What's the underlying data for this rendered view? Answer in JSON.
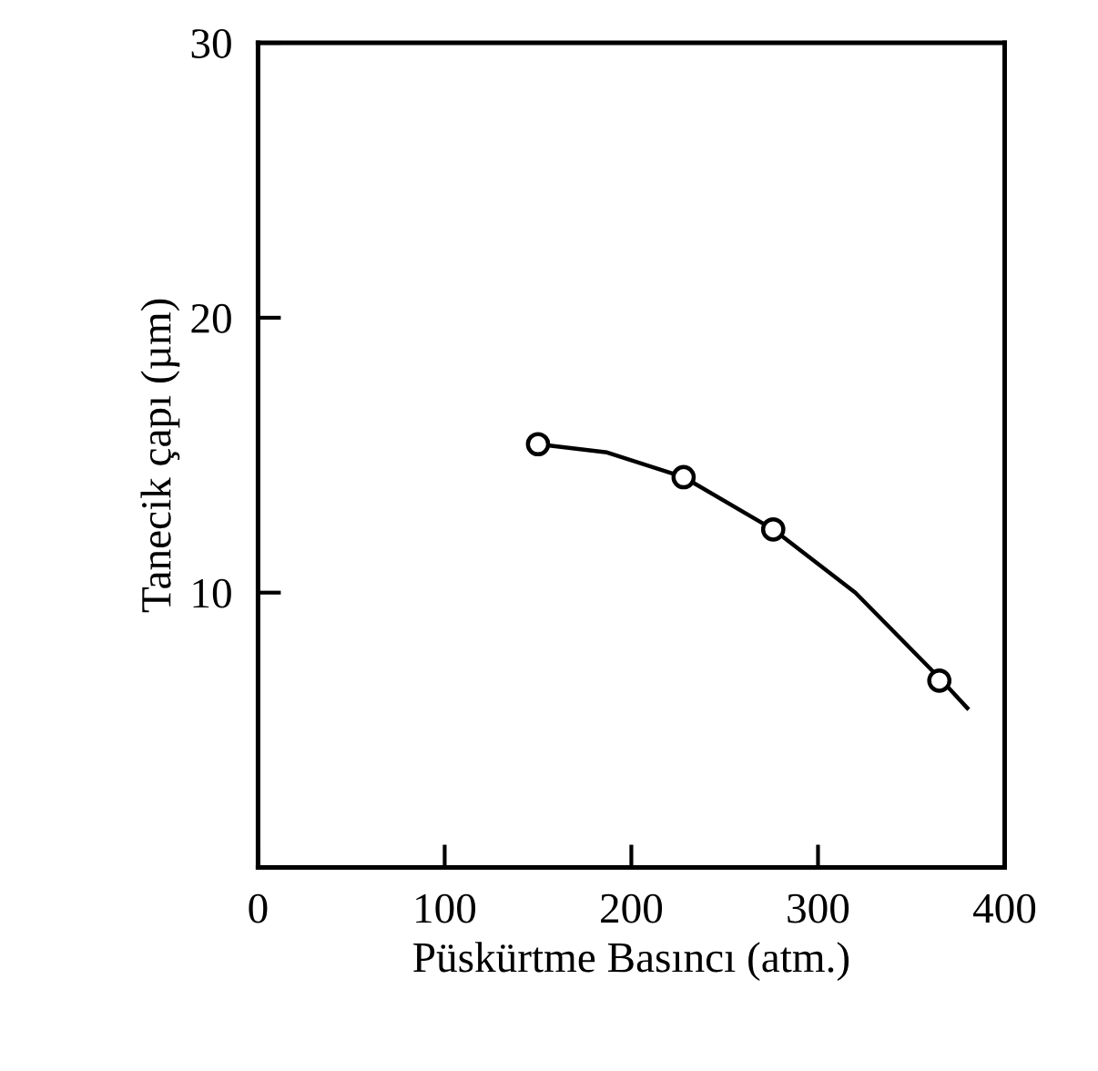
{
  "chart_data": {
    "type": "scatter",
    "xlabel": "Püskürtme Basıncı (atm.)",
    "ylabel": "Tanecik çapı (µm)",
    "xlim": [
      0,
      400
    ],
    "ylim": [
      0,
      30
    ],
    "xticks": [
      0,
      100,
      200,
      300,
      400
    ],
    "yticks": [
      10,
      20,
      30
    ],
    "grid": false,
    "legend": false,
    "series": [
      {
        "color": "#000000",
        "marker": "circle",
        "x": [
          150,
          228,
          276,
          365
        ],
        "values": [
          15.4,
          14.2,
          12.3,
          6.8
        ]
      },
      {
        "type": "line",
        "color": "#000000",
        "marker": "none",
        "line_style": "solid",
        "x": [
          150,
          187,
          228,
          276,
          320,
          365,
          380
        ],
        "values": [
          15.4,
          15.1,
          14.2,
          12.3,
          10.0,
          6.9,
          5.8
        ]
      }
    ]
  }
}
